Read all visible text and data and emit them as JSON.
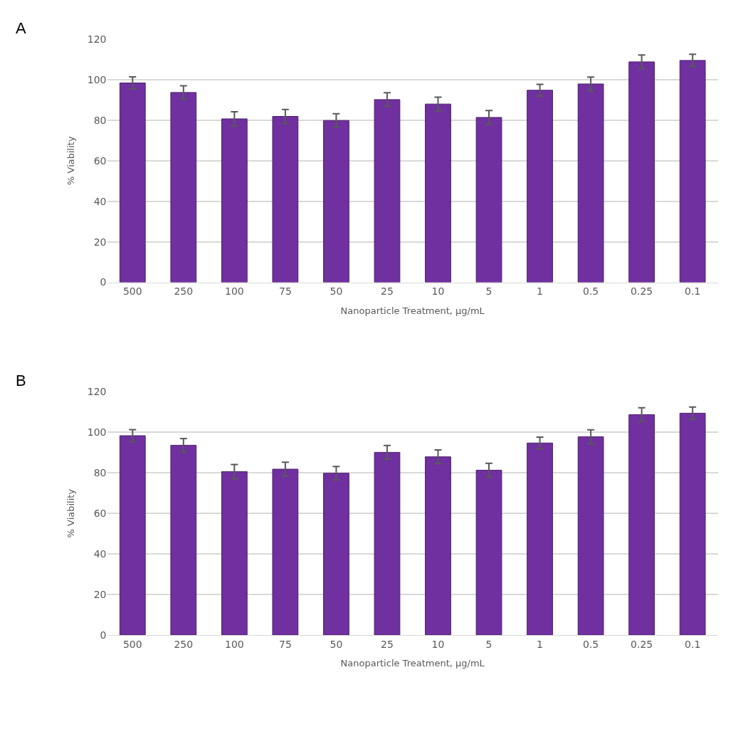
{
  "chart_data": [
    {
      "type": "bar",
      "xlabel": "Nanoparticle Treatment, µg/mL",
      "ylabel": "% Viability",
      "annotations": [
        "A"
      ],
      "categories": [
        "500",
        "250",
        "100",
        "75",
        "50",
        "25",
        "10",
        "5",
        "1",
        "0.5",
        "0.25",
        "0.1"
      ],
      "series": [
        {
          "color": "#7030a0",
          "values": [
            98.3,
            93.6,
            80.6,
            81.8,
            79.8,
            90.1,
            87.9,
            81.3,
            94.7,
            97.8,
            108.7,
            109.4
          ],
          "errors": [
            3,
            3.3,
            3.5,
            3.4,
            3.3,
            3.4,
            3.4,
            3.4,
            2.9,
            3.4,
            3.4,
            3
          ]
        }
      ],
      "ylim": [
        0,
        120
      ],
      "yticks": [
        0,
        20,
        40,
        60,
        80,
        100,
        120
      ],
      "grid": "y"
    },
    {
      "type": "bar",
      "xlabel": "Nanoparticle Treatment, µg/mL",
      "ylabel": "% Viability",
      "annotations": [
        "B"
      ],
      "categories": [
        "500",
        "250",
        "100",
        "75",
        "50",
        "25",
        "10",
        "5",
        "1",
        "0.5",
        "0.25",
        "0.1"
      ],
      "series": [
        {
          "color": "#7030a0",
          "values": [
            98.3,
            93.6,
            80.6,
            81.8,
            79.8,
            90.1,
            87.9,
            81.3,
            94.7,
            97.8,
            108.7,
            109.4
          ],
          "errors": [
            3,
            3.3,
            3.5,
            3.4,
            3.3,
            3.4,
            3.4,
            3.4,
            2.9,
            3.4,
            3.4,
            3
          ]
        }
      ],
      "ylim": [
        0,
        120
      ],
      "yticks": [
        0,
        20,
        40,
        60,
        80,
        100,
        120
      ],
      "grid": "y"
    }
  ]
}
